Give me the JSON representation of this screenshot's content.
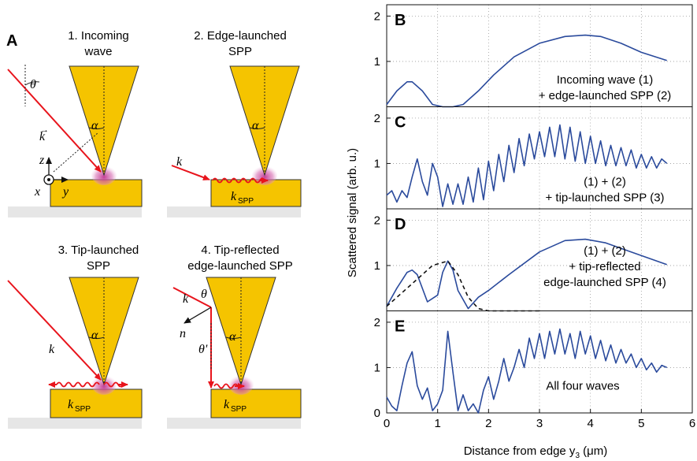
{
  "panel_a": {
    "letter": "A",
    "sub1": {
      "line1": "1. Incoming",
      "line2": "wave"
    },
    "sub2": {
      "line1": "2. Edge-launched",
      "line2": "SPP"
    },
    "sub3": {
      "line1": "3. Tip-launched",
      "line2": "SPP"
    },
    "sub4": {
      "line1": "4. Tip-reflected",
      "line2": "edge-launched SPP"
    },
    "sym_theta": "θ",
    "sym_theta_prime": "θ'",
    "sym_alpha": "α",
    "sym_k": "k",
    "sym_n": "n",
    "sym_kspp": "k",
    "sym_spp_sub": "SPP",
    "axis_z": "z",
    "axis_x": "x",
    "axis_y": "y"
  },
  "chart_data": {
    "type": "line",
    "ylabel": "Scattered signal (arb. u.)",
    "xlabel": "Distance from edge y",
    "xlabel_sub": "3",
    "xlabel_unit": " (μm)",
    "xlim": [
      0,
      6
    ],
    "x_ticks": [
      "0",
      "1",
      "2",
      "3",
      "4",
      "5",
      "6"
    ],
    "y_ticks_top": [
      "1",
      "2"
    ],
    "y_ticks_bottom": [
      "0",
      "1",
      "2"
    ],
    "ylim": [
      0,
      2.25
    ],
    "grid": true,
    "panels": [
      {
        "letter": "B",
        "annotation": [
          "Incoming wave (1)",
          "+ edge-launched SPP (2)"
        ],
        "series": [
          {
            "x": [
              0,
              0.2,
              0.4,
              0.5,
              0.7,
              0.9,
              1.1,
              1.3,
              1.5,
              1.8,
              2.1,
              2.5,
              3.0,
              3.5,
              3.9,
              4.2,
              4.6,
              5.0,
              5.5
            ],
            "y": [
              0.05,
              0.35,
              0.55,
              0.55,
              0.35,
              0.05,
              -0.1,
              -0.1,
              0.05,
              0.35,
              0.7,
              1.1,
              1.4,
              1.55,
              1.58,
              1.55,
              1.4,
              1.2,
              1.02
            ]
          }
        ]
      },
      {
        "letter": "C",
        "annotation": [
          "(1) + (2)",
          "+ tip-launched SPP (3)"
        ],
        "series": [
          {
            "x": [
              0,
              0.1,
              0.2,
              0.3,
              0.4,
              0.5,
              0.6,
              0.7,
              0.8,
              0.9,
              1.0,
              1.1,
              1.2,
              1.3,
              1.4,
              1.5,
              1.6,
              1.7,
              1.8,
              1.9,
              2.0,
              2.1,
              2.2,
              2.3,
              2.4,
              2.5,
              2.6,
              2.7,
              2.8,
              2.9,
              3.0,
              3.1,
              3.2,
              3.3,
              3.4,
              3.5,
              3.6,
              3.7,
              3.8,
              3.9,
              4.0,
              4.1,
              4.2,
              4.3,
              4.4,
              4.5,
              4.6,
              4.7,
              4.8,
              4.9,
              5.0,
              5.1,
              5.2,
              5.3,
              5.4,
              5.5
            ],
            "y": [
              0.3,
              0.4,
              0.15,
              0.4,
              0.25,
              0.7,
              1.1,
              0.6,
              0.3,
              1.0,
              0.7,
              0.05,
              0.55,
              0.1,
              0.55,
              0.1,
              0.7,
              0.15,
              0.9,
              0.2,
              1.05,
              0.4,
              1.2,
              0.6,
              1.4,
              0.8,
              1.55,
              0.95,
              1.65,
              1.1,
              1.7,
              1.15,
              1.8,
              1.15,
              1.85,
              1.1,
              1.8,
              1.05,
              1.7,
              1.0,
              1.6,
              1.0,
              1.5,
              0.95,
              1.4,
              0.95,
              1.35,
              0.95,
              1.3,
              0.9,
              1.2,
              0.9,
              1.15,
              0.9,
              1.1,
              1.0
            ]
          }
        ]
      },
      {
        "letter": "D",
        "annotation": [
          "(1) + (2)",
          "+ tip-reflected",
          "edge-launched SPP (4)"
        ],
        "series": [
          {
            "x": [
              0,
              0.2,
              0.4,
              0.5,
              0.6,
              0.8,
              1.0,
              1.1,
              1.2,
              1.3,
              1.4,
              1.6,
              1.8,
              2.0,
              2.4,
              3.0,
              3.5,
              3.9,
              4.3,
              4.8,
              5.5
            ],
            "y": [
              0.1,
              0.5,
              0.85,
              0.9,
              0.8,
              0.2,
              0.35,
              0.85,
              1.1,
              0.9,
              0.45,
              0.05,
              0.3,
              0.45,
              0.8,
              1.3,
              1.55,
              1.58,
              1.5,
              1.3,
              1.02
            ]
          },
          {
            "style": "dashed",
            "x": [
              0,
              0.3,
              0.6,
              0.9,
              1.2,
              1.4,
              1.6,
              1.8,
              2.0,
              3.0
            ],
            "y": [
              0.1,
              0.4,
              0.7,
              1.0,
              1.1,
              0.8,
              0.3,
              0.05,
              0.0,
              0.0
            ]
          }
        ]
      },
      {
        "letter": "E",
        "annotation": [
          "All four waves"
        ],
        "series": [
          {
            "x": [
              0,
              0.1,
              0.2,
              0.3,
              0.4,
              0.5,
              0.6,
              0.7,
              0.8,
              0.9,
              1.0,
              1.1,
              1.2,
              1.3,
              1.4,
              1.5,
              1.6,
              1.7,
              1.8,
              1.9,
              2.0,
              2.1,
              2.2,
              2.3,
              2.4,
              2.5,
              2.6,
              2.7,
              2.8,
              2.9,
              3.0,
              3.1,
              3.2,
              3.3,
              3.4,
              3.5,
              3.6,
              3.7,
              3.8,
              3.9,
              4.0,
              4.1,
              4.2,
              4.3,
              4.4,
              4.5,
              4.6,
              4.7,
              4.8,
              4.9,
              5.0,
              5.1,
              5.2,
              5.3,
              5.4,
              5.5
            ],
            "y": [
              0.35,
              0.15,
              0.05,
              0.6,
              1.1,
              1.35,
              0.6,
              0.3,
              0.55,
              0.05,
              0.2,
              0.5,
              1.8,
              0.9,
              0.05,
              0.4,
              0.05,
              0.2,
              0.0,
              0.5,
              0.8,
              0.3,
              0.7,
              1.2,
              0.7,
              1.0,
              1.4,
              1.0,
              1.65,
              1.2,
              1.75,
              1.2,
              1.8,
              1.3,
              1.85,
              1.3,
              1.75,
              1.2,
              1.8,
              1.3,
              1.7,
              1.2,
              1.6,
              1.15,
              1.5,
              1.1,
              1.4,
              1.1,
              1.3,
              1.0,
              1.2,
              0.95,
              1.1,
              0.9,
              1.05,
              1.0
            ]
          }
        ]
      }
    ]
  }
}
